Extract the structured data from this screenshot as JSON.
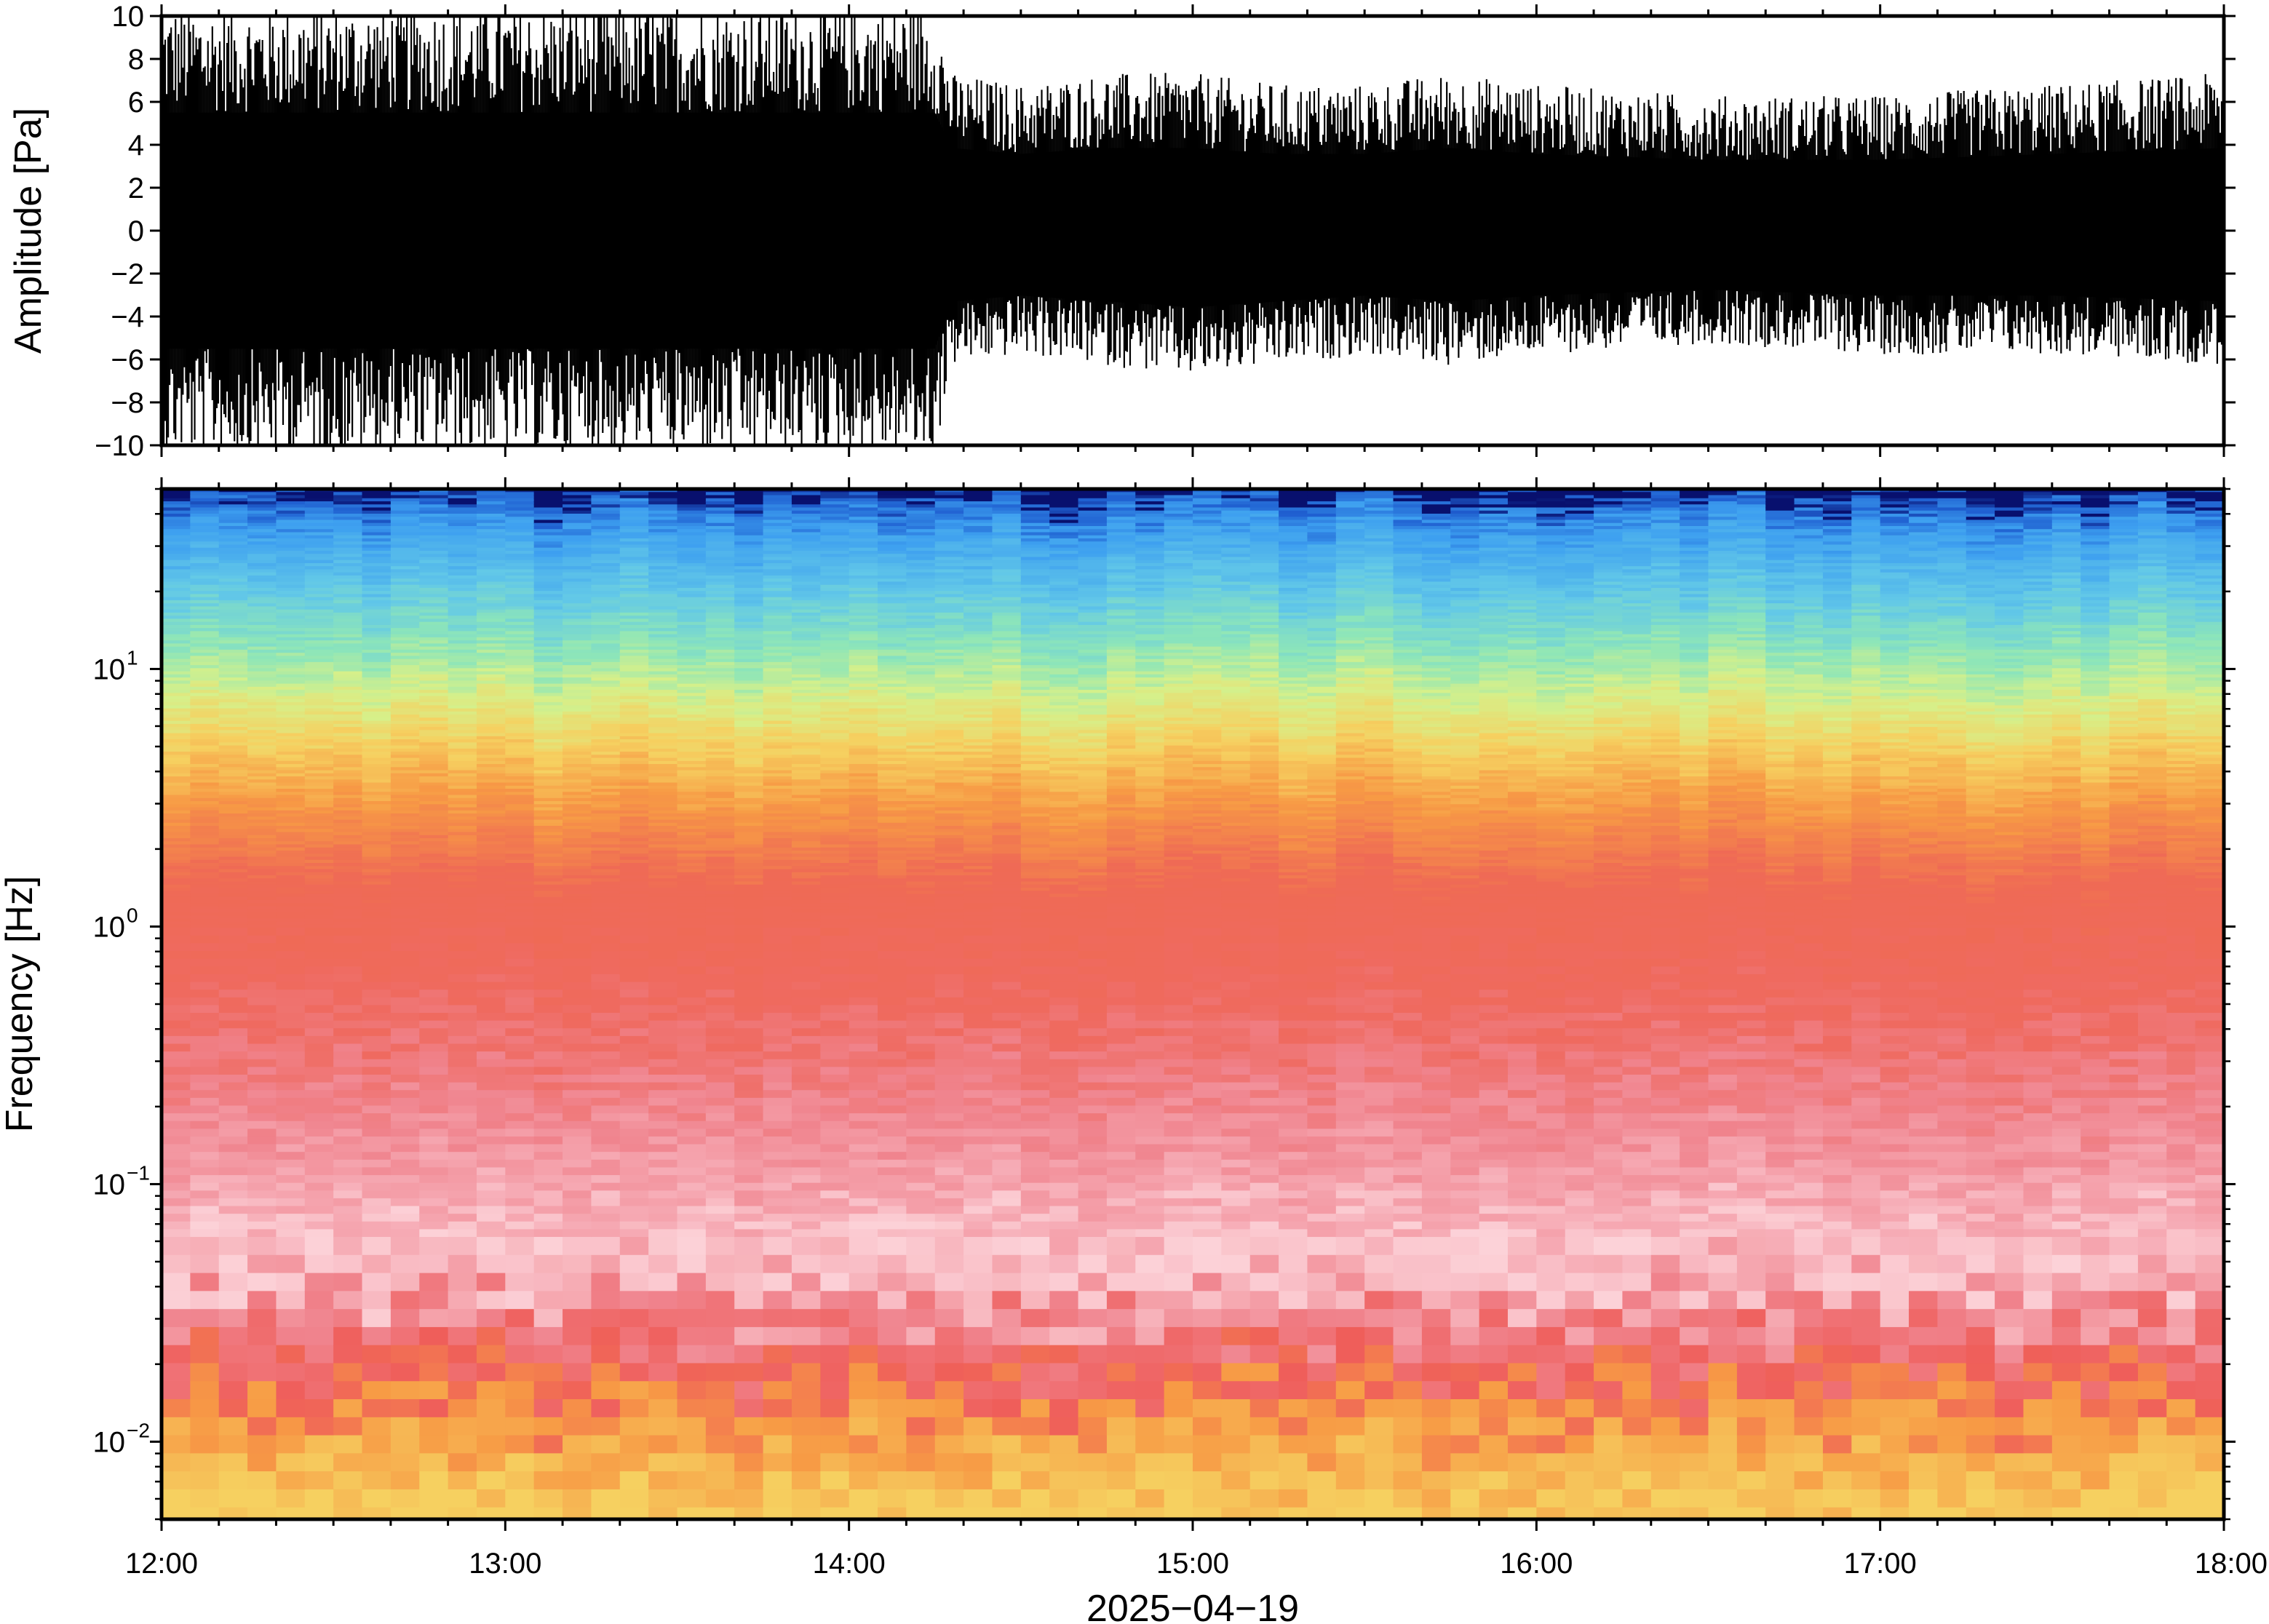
{
  "chart_data": [
    {
      "type": "line",
      "panel": "waveform",
      "ylabel": "Amplitude [Pa]",
      "ylim": [
        -10,
        10
      ],
      "yticks": [
        -10,
        -8,
        -6,
        -4,
        -2,
        0,
        2,
        4,
        6,
        8,
        10
      ],
      "ytick_labels": [
        "−10",
        "−8",
        "−6",
        "−4",
        "−2",
        "0",
        "2",
        "4",
        "6",
        "8",
        "10"
      ],
      "xlim": [
        "12:00",
        "18:00"
      ],
      "color": "#000000",
      "envelope": {
        "time_hours": [
          12.0,
          12.5,
          13.0,
          13.5,
          14.0,
          14.25,
          14.3,
          14.5,
          14.75,
          15.0,
          15.25,
          15.5,
          15.75,
          16.0,
          16.5,
          17.0,
          17.5,
          18.0
        ],
        "upper": [
          10,
          10,
          10,
          10,
          10,
          10,
          7,
          6.5,
          7,
          7,
          6.5,
          6.5,
          7,
          6.5,
          6,
          6,
          6.5,
          7
        ],
        "lower": [
          -10,
          -10,
          -10,
          -10,
          -10,
          -10,
          -6,
          -5.5,
          -6,
          -6.5,
          -6,
          -5.5,
          -6,
          -5.5,
          -5,
          -5.5,
          -5.5,
          -6
        ]
      }
    },
    {
      "type": "heatmap",
      "panel": "spectrogram",
      "ylabel": "Frequency [Hz]",
      "yscale": "log",
      "ylim": [
        0.005,
        50
      ],
      "ytick_labels": [
        {
          "value": 0.01,
          "base": "10",
          "exp": "−2"
        },
        {
          "value": 0.1,
          "base": "10",
          "exp": "−1"
        },
        {
          "value": 1,
          "base": "10",
          "exp": "0"
        },
        {
          "value": 10,
          "base": "10",
          "exp": "1"
        }
      ],
      "xlabel": "2025−04−19",
      "xtick_labels": [
        "12:00",
        "13:00",
        "14:00",
        "15:00",
        "16:00",
        "17:00",
        "18:00"
      ],
      "colormap": [
        "#08106e",
        "#1f5fd0",
        "#3d9ff0",
        "#62c8e8",
        "#8ee6b8",
        "#d6f08a",
        "#f6d060",
        "#f79a45",
        "#ef6a55",
        "#f0848e",
        "#f6aab4",
        "#fcd2d8"
      ],
      "color_profile": [
        {
          "freq_hz": 48,
          "color": "#08106e"
        },
        {
          "freq_hz": 45,
          "color": "#1f5fd0"
        },
        {
          "freq_hz": 35,
          "color": "#3d9ff0"
        },
        {
          "freq_hz": 20,
          "color": "#62c8e8"
        },
        {
          "freq_hz": 12,
          "color": "#8ee6b8"
        },
        {
          "freq_hz": 8,
          "color": "#d6f08a"
        },
        {
          "freq_hz": 5,
          "color": "#f6d060"
        },
        {
          "freq_hz": 3,
          "color": "#f79a45"
        },
        {
          "freq_hz": 1.5,
          "color": "#ef6a55"
        },
        {
          "freq_hz": 0.5,
          "color": "#ef6a60"
        },
        {
          "freq_hz": 0.2,
          "color": "#f0848e"
        },
        {
          "freq_hz": 0.08,
          "color": "#f6aab4"
        },
        {
          "freq_hz": 0.05,
          "color": "#fcd2d8"
        },
        {
          "freq_hz": 0.03,
          "color": "#f0848e"
        },
        {
          "freq_hz": 0.018,
          "color": "#ef5e5a"
        },
        {
          "freq_hz": 0.012,
          "color": "#f79a45"
        },
        {
          "freq_hz": 0.005,
          "color": "#f6d060"
        }
      ]
    }
  ]
}
